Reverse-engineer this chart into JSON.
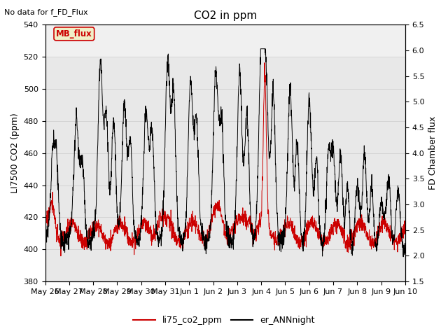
{
  "title": "CO2 in ppm",
  "top_left_text": "No data for f_FD_Flux",
  "ylabel_left": "LI7500 CO2 (ppm)",
  "ylabel_right": "FD Chamber flux",
  "xlim_start": 0,
  "xlim_end": 15,
  "ylim_left": [
    380,
    540
  ],
  "ylim_right": [
    1.5,
    6.5
  ],
  "yticks_left": [
    380,
    400,
    420,
    440,
    460,
    480,
    500,
    520,
    540
  ],
  "yticks_right": [
    1.5,
    2.0,
    2.5,
    3.0,
    3.5,
    4.0,
    4.5,
    5.0,
    5.5,
    6.0,
    6.5
  ],
  "xtick_labels": [
    "May 26",
    "May 27",
    "May 28",
    "May 29",
    "May 30",
    "May 31",
    "Jun 1",
    "Jun 2",
    "Jun 3",
    "Jun 4",
    "Jun 5",
    "Jun 6",
    "Jun 7",
    "Jun 8",
    "Jun 9",
    "Jun 10"
  ],
  "xtick_positions": [
    0,
    1,
    2,
    3,
    4,
    5,
    6,
    7,
    8,
    9,
    10,
    11,
    12,
    13,
    14,
    15
  ],
  "legend_entries": [
    "li75_co2_ppm",
    "er_ANNnight"
  ],
  "legend_colors": [
    "#cc0000",
    "#000000"
  ],
  "mb_flux_label": "MB_flux",
  "mb_flux_color": "#cc0000",
  "mb_flux_bg": "#f0f0c8",
  "grid_color": "#d0d0d0",
  "bg_color": "#e8e8e8",
  "plot_bg_upper": "#f0f0f0",
  "title_fontsize": 11,
  "label_fontsize": 9,
  "tick_fontsize": 8
}
